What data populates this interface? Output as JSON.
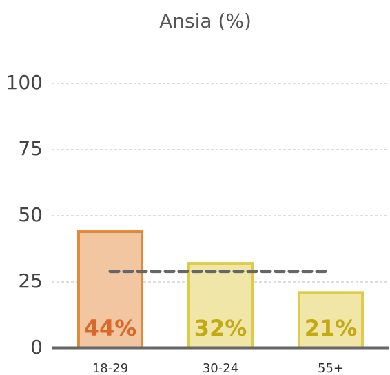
{
  "chart_data": {
    "type": "bar",
    "title": "Ansia (%)",
    "categories": [
      "18-29",
      "30-24",
      "55+"
    ],
    "values": [
      44,
      32,
      21
    ],
    "value_labels": [
      "44%",
      "32%",
      "21%"
    ],
    "colors": [
      "#f2c6a0",
      "#f0e6a8",
      "#f0e6a8"
    ],
    "edge_colors": [
      "#e08a3c",
      "#dfcb4a",
      "#dfcb4a"
    ],
    "label_colors": [
      "#d9692a",
      "#c4a917",
      "#c4a917"
    ],
    "reference_line": 29,
    "ylim": [
      0,
      100
    ],
    "yticks": [
      0,
      25,
      50,
      75,
      100
    ],
    "grid": true
  }
}
